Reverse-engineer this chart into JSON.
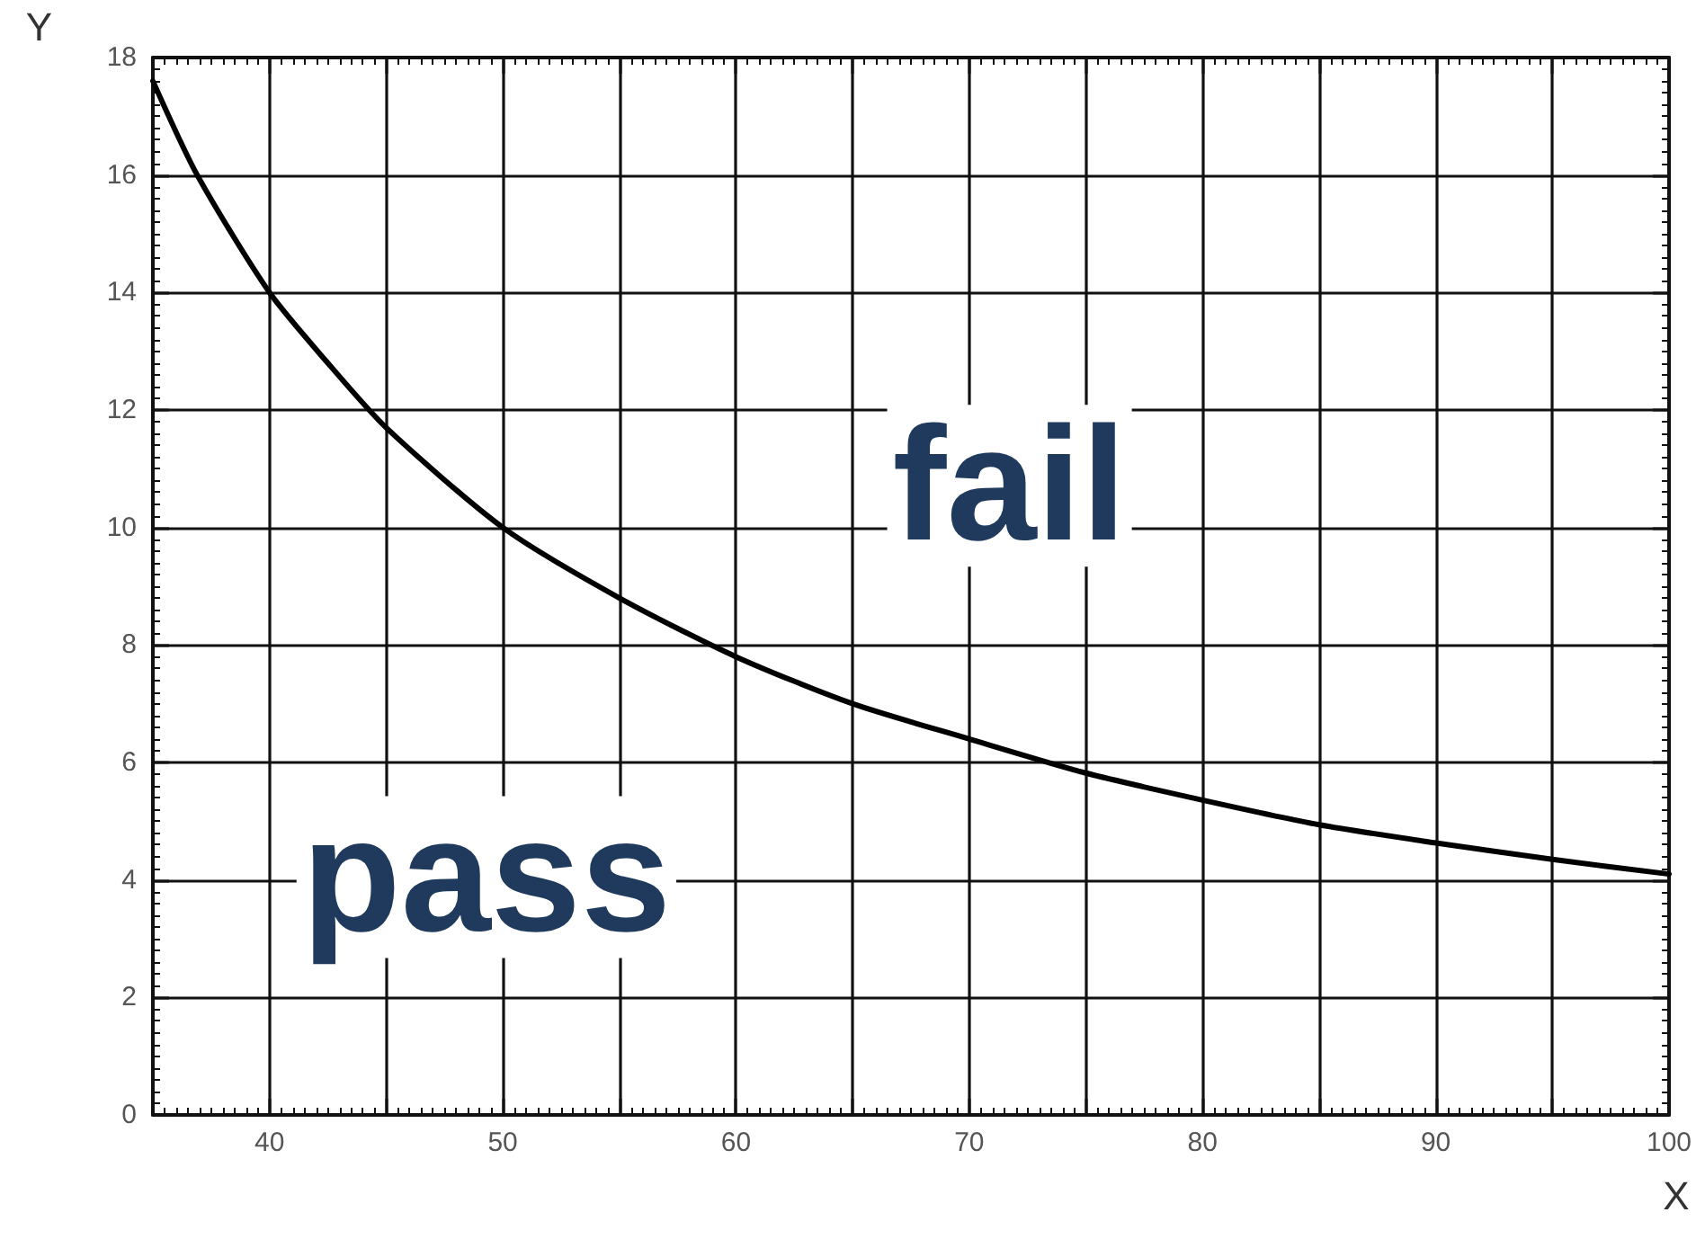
{
  "chart_data": {
    "type": "line",
    "xlabel": "X",
    "ylabel": "Y",
    "x": [
      35,
      36.9,
      40,
      42.5,
      45,
      50,
      55,
      60,
      65,
      70,
      75,
      80,
      85,
      90,
      95,
      100
    ],
    "values": [
      17.6,
      16,
      14,
      12.8,
      11.7,
      10,
      8.8,
      7.8,
      7.0,
      6.4,
      5.82,
      5.36,
      4.94,
      4.63,
      4.35,
      4.1
    ],
    "color": "#000000",
    "line_style": "solid",
    "grid": true,
    "xlim": [
      35,
      100
    ],
    "xticks": [
      40,
      {
        "value": 45,
        "label": null
      },
      50,
      {
        "value": 55,
        "label": null
      },
      60,
      {
        "value": 65,
        "label": null
      },
      70,
      {
        "value": 75,
        "label": null
      },
      80,
      {
        "value": 85,
        "label": null
      },
      90,
      {
        "value": 95,
        "label": null
      },
      100
    ],
    "ylim": [
      0,
      18
    ],
    "yticks": [
      0,
      2,
      4,
      6,
      8,
      10,
      12,
      14,
      16,
      18
    ],
    "annotations": [
      "fail",
      "pass"
    ]
  }
}
